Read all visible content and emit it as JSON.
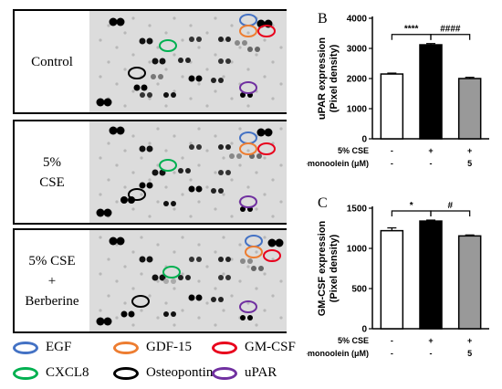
{
  "rows": [
    {
      "label": "Control"
    },
    {
      "label": "5%\nCSE"
    },
    {
      "label": "5% CSE\n+\nBerberine"
    }
  ],
  "legend": [
    {
      "name": "EGF",
      "color": "#4472c4"
    },
    {
      "name": "GDF-15",
      "color": "#ed7d31"
    },
    {
      "name": "GM-CSF",
      "color": "#e8001c"
    },
    {
      "name": "CXCL8",
      "color": "#00b050"
    },
    {
      "name": "Osteopontin",
      "color": "#000000"
    },
    {
      "name": "uPAR",
      "color": "#7030a0"
    }
  ],
  "chart_data": [
    {
      "panel": "B",
      "type": "bar",
      "ylabel": "uPAR expression\n(Pixel density)",
      "ylim": [
        0,
        4000
      ],
      "yticks": [
        0,
        1000,
        2000,
        3000,
        4000
      ],
      "values": [
        2150,
        3120,
        2000
      ],
      "errors": [
        30,
        40,
        40
      ],
      "bar_fills": [
        "#ffffff",
        "#000000",
        "#999999"
      ],
      "condition_rows": [
        {
          "label": "5% CSE",
          "marks": [
            "-",
            "+",
            "+"
          ]
        },
        {
          "label": "BBR-monoolein (μM)",
          "marks": [
            "-",
            "-",
            "5"
          ]
        }
      ],
      "annotations": [
        {
          "text": "****",
          "from": 0,
          "to": 1
        },
        {
          "text": "####",
          "from": 1,
          "to": 2
        }
      ]
    },
    {
      "panel": "C",
      "type": "bar",
      "ylabel": "GM-CSF expression\n(Pixel density)",
      "ylim": [
        0,
        1500
      ],
      "yticks": [
        0,
        500,
        1000,
        1500
      ],
      "values": [
        1220,
        1340,
        1155
      ],
      "errors": [
        35,
        12,
        12
      ],
      "bar_fills": [
        "#ffffff",
        "#000000",
        "#999999"
      ],
      "condition_rows": [
        {
          "label": "5% CSE",
          "marks": [
            "-",
            "+",
            "+"
          ]
        },
        {
          "label": "BBR-monoolein (μM)",
          "marks": [
            "-",
            "-",
            "5"
          ]
        }
      ],
      "annotations": [
        {
          "text": "*",
          "from": 0,
          "to": 1
        },
        {
          "text": "#",
          "from": 1,
          "to": 2
        }
      ]
    }
  ]
}
